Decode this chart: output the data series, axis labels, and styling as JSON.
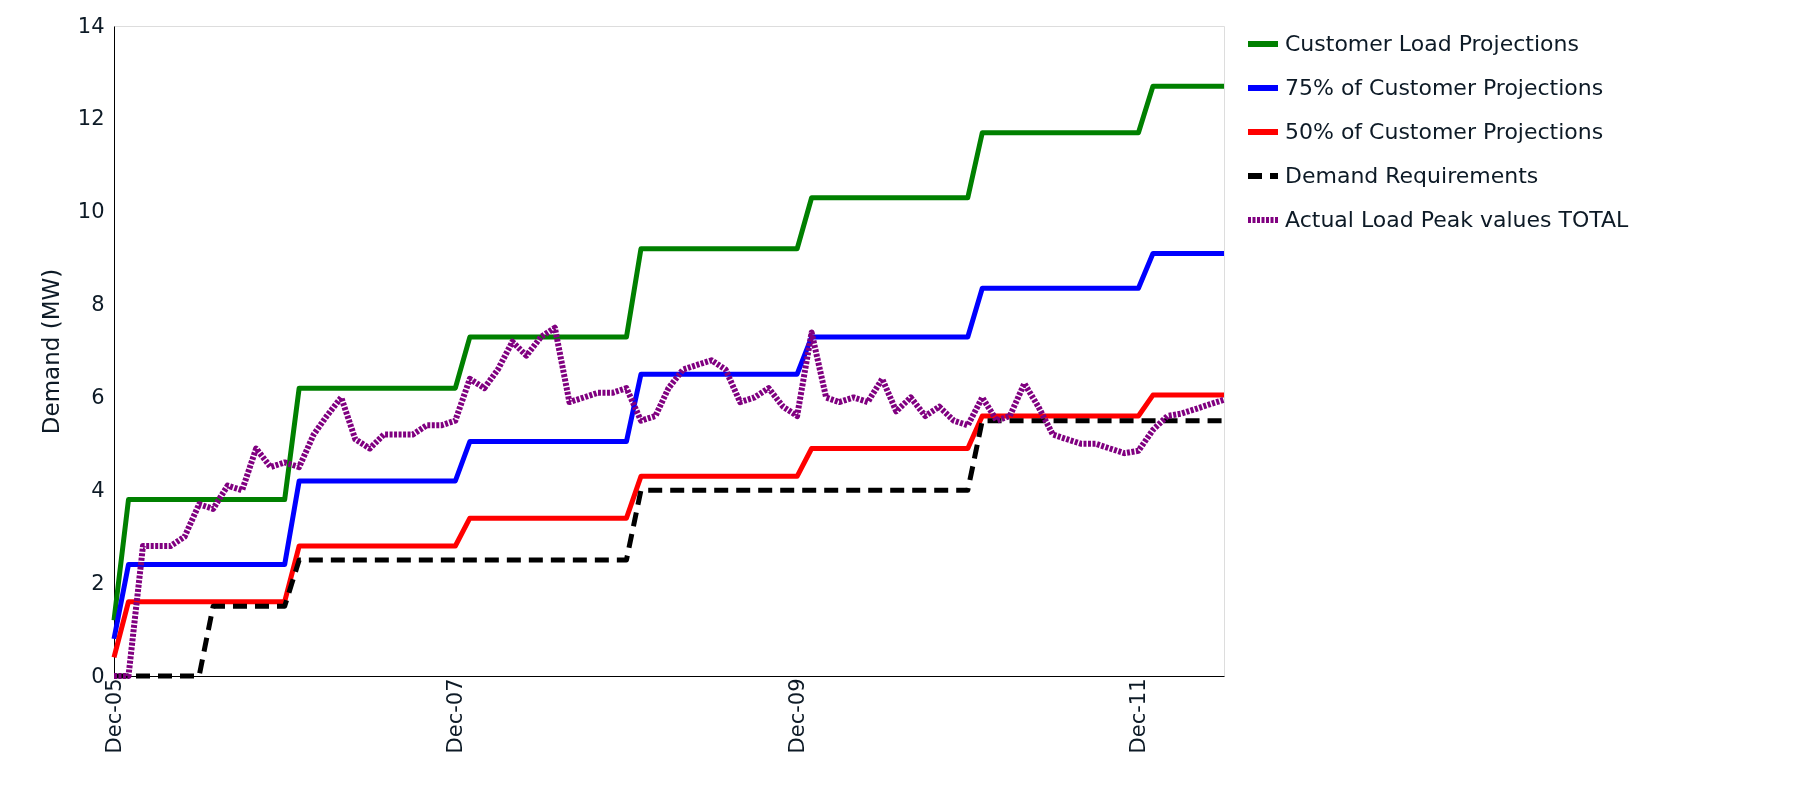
{
  "chart_data": {
    "type": "line",
    "ylabel": "Demand (MW)",
    "legend": "right",
    "grid": false,
    "x": [
      "2005-12",
      "2006-01",
      "2006-12",
      "2007-01",
      "2007-12",
      "2008-01",
      "2008-12",
      "2009-01",
      "2009-12",
      "2010-01",
      "2010-12",
      "2011-01",
      "2011-12",
      "2012-01",
      "2012-06"
    ],
    "xlim": [
      "2005-12",
      "2012-06"
    ],
    "xticks": [
      {
        "value": "2005-12",
        "label": "Dec-05"
      },
      {
        "value": "2007-12",
        "label": "Dec-07"
      },
      {
        "value": "2009-12",
        "label": "Dec-09"
      },
      {
        "value": "2011-12",
        "label": "Dec-11"
      }
    ],
    "ylim": [
      0,
      14
    ],
    "yticks": [
      0,
      2,
      4,
      6,
      8,
      10,
      12,
      14
    ],
    "series": [
      {
        "name": "Customer Load Projections",
        "color": "#008000",
        "line_style": "solid",
        "values": [
          1.2,
          3.8,
          3.8,
          6.2,
          6.2,
          7.3,
          7.3,
          9.2,
          9.2,
          10.3,
          10.3,
          11.7,
          11.7,
          12.7,
          12.7
        ]
      },
      {
        "name": "75% of Customer Projections",
        "color": "#0000ff",
        "line_style": "solid",
        "values": [
          0.8,
          2.4,
          2.4,
          4.2,
          4.2,
          5.05,
          5.05,
          6.5,
          6.5,
          7.3,
          7.3,
          8.35,
          8.35,
          9.1,
          9.1
        ]
      },
      {
        "name": "50% of Customer Projections",
        "color": "#ff0000",
        "line_style": "solid",
        "values": [
          0.4,
          1.6,
          1.6,
          2.8,
          2.8,
          3.4,
          3.4,
          4.3,
          4.3,
          4.9,
          4.9,
          5.6,
          5.6,
          6.05,
          6.05
        ]
      },
      {
        "name": "Demand Requirements",
        "color": "#000000",
        "line_style": "dashed",
        "x": [
          "2005-12",
          "2006-06",
          "2006-07",
          "2006-12",
          "2007-01",
          "2008-12",
          "2009-01",
          "2010-12",
          "2011-01",
          "2012-06"
        ],
        "values": [
          0,
          0,
          1.5,
          1.5,
          2.5,
          2.5,
          4.0,
          4.0,
          5.5,
          5.5
        ]
      },
      {
        "name": "Actual Load Peak values TOTAL",
        "color": "#800080",
        "line_style": "dotted",
        "x": [
          "2005-12",
          "2006-01",
          "2006-02",
          "2006-03",
          "2006-04",
          "2006-05",
          "2006-06",
          "2006-07",
          "2006-08",
          "2006-09",
          "2006-10",
          "2006-11",
          "2006-12",
          "2007-01",
          "2007-02",
          "2007-03",
          "2007-04",
          "2007-05",
          "2007-06",
          "2007-07",
          "2007-08",
          "2007-09",
          "2007-10",
          "2007-11",
          "2007-12",
          "2008-01",
          "2008-02",
          "2008-03",
          "2008-04",
          "2008-05",
          "2008-06",
          "2008-07",
          "2008-08",
          "2008-09",
          "2008-10",
          "2008-11",
          "2008-12",
          "2009-01",
          "2009-02",
          "2009-03",
          "2009-04",
          "2009-05",
          "2009-06",
          "2009-07",
          "2009-08",
          "2009-09",
          "2009-10",
          "2009-11",
          "2009-12",
          "2010-01",
          "2010-02",
          "2010-03",
          "2010-04",
          "2010-05",
          "2010-06",
          "2010-07",
          "2010-08",
          "2010-09",
          "2010-10",
          "2010-11",
          "2010-12",
          "2011-01",
          "2011-02",
          "2011-03",
          "2011-04",
          "2011-05",
          "2011-06",
          "2011-07",
          "2011-08",
          "2011-09",
          "2011-10",
          "2011-11",
          "2011-12",
          "2012-01",
          "2012-02",
          "2012-03",
          "2012-04",
          "2012-05",
          "2012-06"
        ],
        "values": [
          0,
          0,
          2.8,
          2.8,
          2.8,
          3.0,
          3.7,
          3.6,
          4.1,
          4.0,
          4.9,
          4.5,
          4.6,
          4.5,
          5.2,
          5.6,
          6.0,
          5.1,
          4.9,
          5.2,
          5.2,
          5.2,
          5.4,
          5.4,
          5.5,
          6.4,
          6.2,
          6.6,
          7.2,
          6.9,
          7.3,
          7.5,
          5.9,
          6.0,
          6.1,
          6.1,
          6.2,
          5.5,
          5.6,
          6.2,
          6.6,
          6.7,
          6.8,
          6.6,
          5.9,
          6.0,
          6.2,
          5.8,
          5.6,
          7.4,
          6.0,
          5.9,
          6.0,
          5.9,
          6.4,
          5.7,
          6.0,
          5.6,
          5.8,
          5.5,
          5.4,
          6.0,
          5.5,
          5.6,
          6.3,
          5.8,
          5.2,
          5.1,
          5.0,
          5.0,
          4.9,
          4.8,
          4.85,
          5.3,
          5.6,
          5.65,
          5.75,
          5.85,
          5.95
        ]
      }
    ]
  }
}
